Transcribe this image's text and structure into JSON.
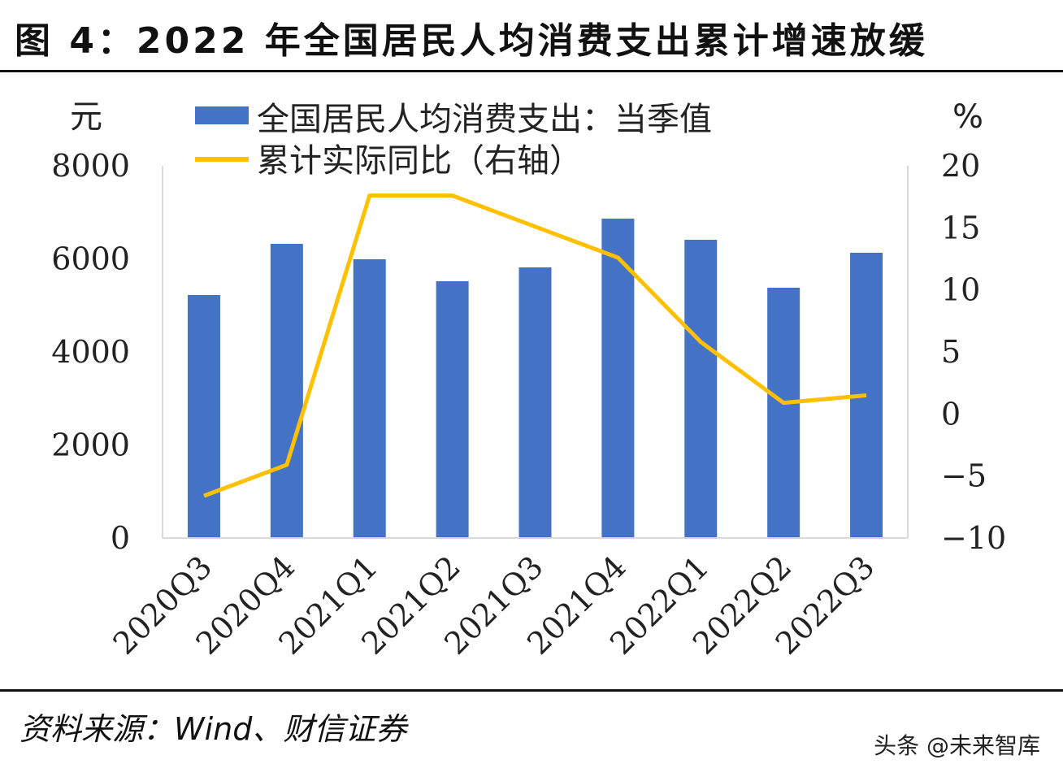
{
  "title": "图 4：2022 年全国居民人均消费支出累计增速放缓",
  "source": "资料来源：Wind、财信证券",
  "watermark": "头条 @未来智库",
  "chart_data": {
    "type": "bar+line",
    "categories": [
      "2020Q3",
      "2020Q4",
      "2021Q1",
      "2021Q2",
      "2021Q3",
      "2021Q4",
      "2022Q1",
      "2022Q2",
      "2022Q3"
    ],
    "series": [
      {
        "name": "全国居民人均消费支出：当季值",
        "type": "bar",
        "axis": "left",
        "color": "#4472C4",
        "values": [
          5223,
          6323,
          5991,
          5520,
          5817,
          6865,
          6410,
          5380,
          6131
        ]
      },
      {
        "name": "累计实际同比（右轴）",
        "type": "line",
        "axis": "right",
        "color": "#FFC000",
        "values": [
          -6.6,
          -4.1,
          17.6,
          17.6,
          15.1,
          12.6,
          5.8,
          0.9,
          1.5
        ]
      }
    ],
    "ylabel_left": "元",
    "ylabel_right": "%",
    "ylim_left": [
      0,
      8000
    ],
    "ylim_right": [
      -10,
      20
    ],
    "yticks_left": [
      "0",
      "2000",
      "4000",
      "6000",
      "8000"
    ],
    "yticks_right": [
      "-10",
      "-5",
      "0",
      "5",
      "10",
      "15",
      "20"
    ],
    "legend_position": "top-left"
  }
}
